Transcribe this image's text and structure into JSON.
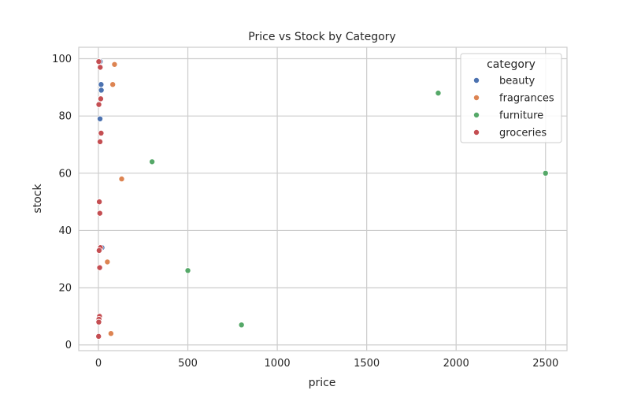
{
  "chart_data": {
    "type": "scatter",
    "title": "Price vs Stock by Category",
    "xlabel": "price",
    "ylabel": "stock",
    "xlim": [
      -110,
      2620
    ],
    "ylim": [
      -2,
      104
    ],
    "xticks": [
      0,
      500,
      1000,
      1500,
      2000,
      2500
    ],
    "yticks": [
      0,
      20,
      40,
      60,
      80,
      100
    ],
    "grid": true,
    "legend": {
      "title": "category",
      "placement": "top-right"
    },
    "series": [
      {
        "name": "beauty",
        "color": "#4c72b0",
        "points": [
          [
            9.99,
            99
          ],
          [
            14.99,
            91
          ],
          [
            15.99,
            89
          ],
          [
            8.99,
            79
          ],
          [
            19.99,
            34
          ]
        ]
      },
      {
        "name": "fragrances",
        "color": "#dd8452",
        "points": [
          [
            89.99,
            98
          ],
          [
            79.99,
            91
          ],
          [
            129.99,
            58
          ],
          [
            49.99,
            29
          ],
          [
            69.99,
            4
          ]
        ]
      },
      {
        "name": "furniture",
        "color": "#55a868",
        "points": [
          [
            1899.99,
            88
          ],
          [
            299.99,
            64
          ],
          [
            2499.99,
            60
          ],
          [
            499.99,
            26
          ],
          [
            799.99,
            7
          ]
        ]
      },
      {
        "name": "groceries",
        "color": "#c44e52",
        "points": [
          [
            1.99,
            99
          ],
          [
            9.99,
            97
          ],
          [
            12.99,
            86
          ],
          [
            2.49,
            84
          ],
          [
            14.99,
            74
          ],
          [
            8.99,
            71
          ],
          [
            4.99,
            50
          ],
          [
            7.99,
            46
          ],
          [
            10.99,
            34
          ],
          [
            3.99,
            33
          ],
          [
            6.99,
            27
          ],
          [
            5.99,
            10
          ],
          [
            2.99,
            9
          ],
          [
            1.99,
            8
          ],
          [
            0.99,
            3
          ]
        ]
      }
    ]
  }
}
